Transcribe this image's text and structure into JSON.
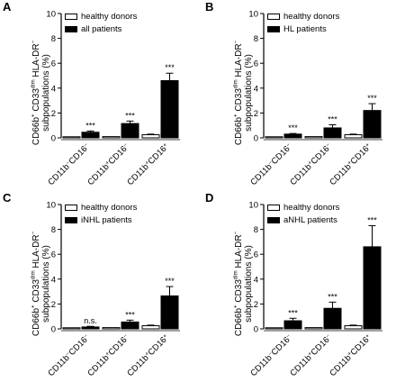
{
  "colors": {
    "healthy": "#ffffff",
    "patients": "#000000",
    "axis": "#000000"
  },
  "shared": {
    "ylabel_lines": [
      "CD66b+ CD33dim HLA-DR-",
      "subpopulations (%)"
    ],
    "categories": [
      "CD11b-CD16-",
      "CD11b+CD16-",
      "CD11b+CD16+"
    ]
  },
  "chart_data": [
    {
      "type": "bar",
      "panel": "A",
      "categories": [
        "CD11b-CD16-",
        "CD11b+CD16-",
        "CD11b+CD16+"
      ],
      "series": [
        {
          "name": "healthy donors",
          "values": [
            0.05,
            0.1,
            0.25
          ],
          "errors": [
            0.02,
            0.03,
            0.05
          ]
        },
        {
          "name": "all patients",
          "values": [
            0.45,
            1.15,
            4.6
          ],
          "errors": [
            0.1,
            0.2,
            0.6
          ]
        }
      ],
      "annotations": [
        "***",
        "***",
        "***"
      ],
      "ylim": [
        0,
        10
      ],
      "yticks": [
        0,
        2,
        4,
        6,
        8,
        10
      ],
      "legend": "top-left"
    },
    {
      "type": "bar",
      "panel": "B",
      "categories": [
        "CD11b-CD16-",
        "CD11b+CD16-",
        "CD11b+CD16+"
      ],
      "series": [
        {
          "name": "healthy donors",
          "values": [
            0.05,
            0.1,
            0.25
          ],
          "errors": [
            0.02,
            0.03,
            0.05
          ]
        },
        {
          "name": "HL patients",
          "values": [
            0.3,
            0.8,
            2.2
          ],
          "errors": [
            0.05,
            0.25,
            0.55
          ]
        }
      ],
      "annotations": [
        "***",
        "***",
        "***"
      ],
      "ylim": [
        0,
        10
      ],
      "yticks": [
        0,
        2,
        4,
        6,
        8,
        10
      ],
      "legend": "top-left"
    },
    {
      "type": "bar",
      "panel": "C",
      "categories": [
        "CD11b-CD16-",
        "CD11b+CD16-",
        "CD11b+CD16+"
      ],
      "series": [
        {
          "name": "healthy donors",
          "values": [
            0.05,
            0.1,
            0.25
          ],
          "errors": [
            0.02,
            0.03,
            0.05
          ]
        },
        {
          "name": "iNHL patients",
          "values": [
            0.15,
            0.55,
            2.65
          ],
          "errors": [
            0.05,
            0.15,
            0.75
          ]
        }
      ],
      "annotations": [
        "n.s.",
        "***",
        "***"
      ],
      "ylim": [
        0,
        10
      ],
      "yticks": [
        0,
        2,
        4,
        6,
        8,
        10
      ],
      "legend": "top-left"
    },
    {
      "type": "bar",
      "panel": "D",
      "categories": [
        "CD11b-CD16-",
        "CD11b+CD16-",
        "CD11b+CD16+"
      ],
      "series": [
        {
          "name": "healthy donors",
          "values": [
            0.05,
            0.1,
            0.25
          ],
          "errors": [
            0.02,
            0.03,
            0.05
          ]
        },
        {
          "name": "aNHL patients",
          "values": [
            0.65,
            1.65,
            6.6
          ],
          "errors": [
            0.2,
            0.5,
            1.7
          ]
        }
      ],
      "annotations": [
        "***",
        "***",
        "***"
      ],
      "ylim": [
        0,
        10
      ],
      "yticks": [
        0,
        2,
        4,
        6,
        8,
        10
      ],
      "legend": "top-left"
    }
  ]
}
